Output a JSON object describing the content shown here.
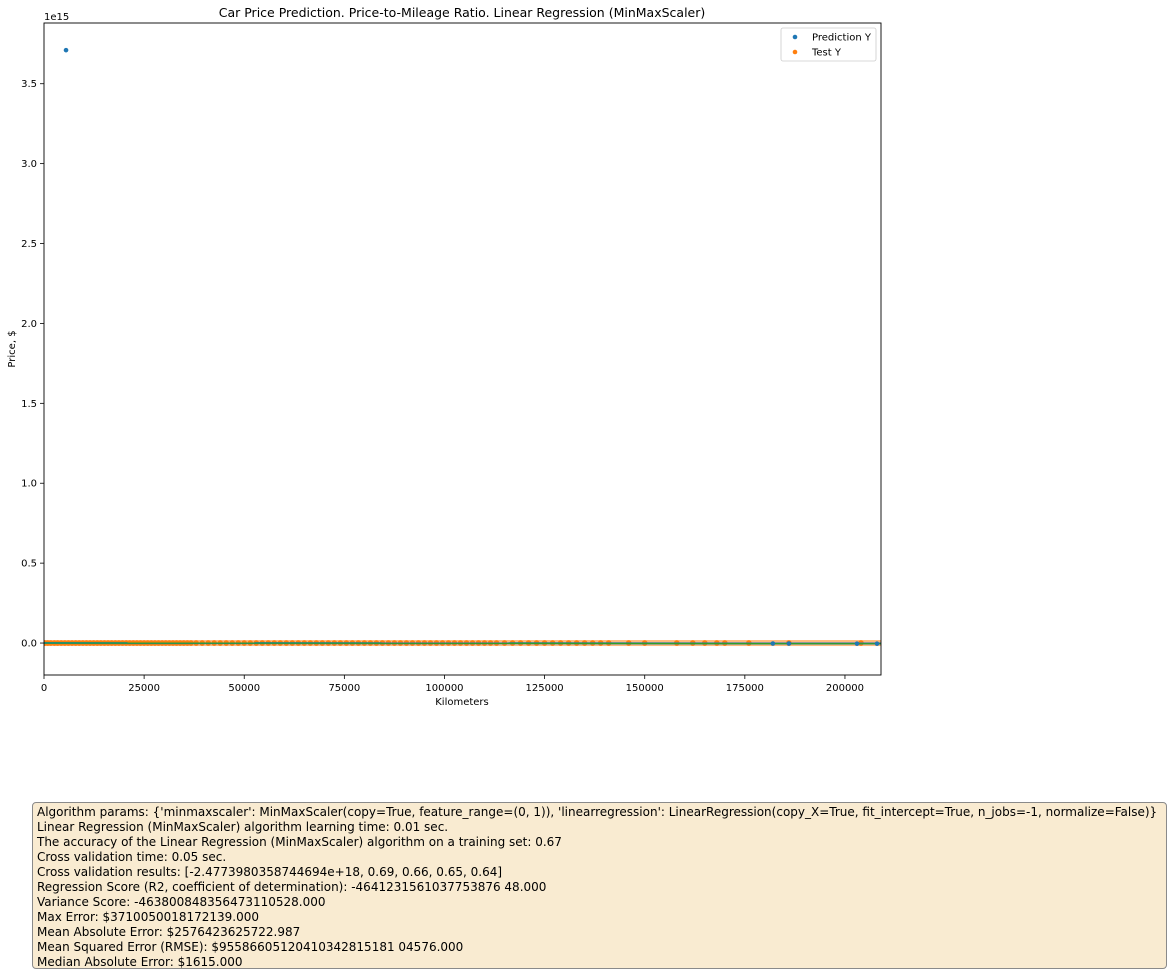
{
  "chart_data": {
    "type": "scatter",
    "title": "Car Price Prediction. Price-to-Mileage Ratio. Linear Regression (MinMaxScaler)",
    "xlabel": "Kilometers",
    "ylabel": "Price, $",
    "y_offset_label": "1e15",
    "xlim": [
      0,
      209000
    ],
    "ylim": [
      -0.2,
      3.88
    ],
    "y_scale_factor": 1000000000000000.0,
    "x_ticks": [
      0,
      25000,
      50000,
      75000,
      100000,
      125000,
      150000,
      175000,
      200000
    ],
    "x_tick_labels": [
      "0",
      "25000",
      "50000",
      "75000",
      "100000",
      "125000",
      "150000",
      "175000",
      "200000"
    ],
    "y_ticks": [
      0.0,
      0.5,
      1.0,
      1.5,
      2.0,
      2.5,
      3.0,
      3.5
    ],
    "y_tick_labels": [
      "0.0",
      "0.5",
      "1.0",
      "1.5",
      "2.0",
      "2.5",
      "3.0",
      "3.5"
    ],
    "legend_position": "top-right",
    "grid": false,
    "series": [
      {
        "name": "Prediction Y",
        "color": "#1f77b4",
        "points": [
          [
            5500,
            3.71
          ],
          [
            182000,
            -0.003
          ],
          [
            186000,
            -0.003
          ],
          [
            203000,
            -0.004
          ],
          [
            208000,
            -0.004
          ]
        ]
      },
      {
        "name": "Test Y",
        "color": "#ff7f0e",
        "x_values": [
          200,
          900,
          1700,
          2600,
          3400,
          4300,
          5200,
          6100,
          7000,
          7900,
          8800,
          9700,
          10600,
          11500,
          12400,
          13300,
          14200,
          15100,
          16000,
          16900,
          17800,
          18700,
          19600,
          20500,
          21400,
          22300,
          23200,
          24100,
          25000,
          25900,
          26800,
          27700,
          28600,
          29500,
          30400,
          31300,
          32200,
          33100,
          34000,
          34900,
          35800,
          36700,
          38000,
          39500,
          41000,
          42500,
          44000,
          45500,
          47000,
          48500,
          50000,
          51500,
          53000,
          54500,
          56000,
          57500,
          59000,
          60500,
          62000,
          63500,
          65000,
          66500,
          68000,
          69500,
          71000,
          72500,
          74000,
          75500,
          77000,
          78500,
          80000,
          81500,
          83000,
          84500,
          86000,
          87500,
          89000,
          90500,
          92000,
          93500,
          95000,
          96500,
          98000,
          99500,
          101000,
          102500,
          104000,
          105500,
          107000,
          108500,
          110000,
          111500,
          113000,
          115000,
          117000,
          119000,
          121000,
          123000,
          125000,
          127000,
          129000,
          131000,
          133000,
          135000,
          137000,
          139000,
          141000,
          146000,
          150000,
          158000,
          162000,
          165000,
          168000,
          170000,
          176000,
          186000,
          204000
        ],
        "y_value": 0.0
      }
    ],
    "trend_line": {
      "color": "#2ca02c",
      "from": [
        0,
        0.0
      ],
      "to": [
        209000,
        -0.004
      ]
    },
    "prediction_band": {
      "color": "#1f77b4",
      "from": [
        0,
        0.0
      ],
      "to": [
        209000,
        -0.003
      ]
    }
  },
  "results": {
    "lines": [
      "Algorithm params: {'minmaxscaler': MinMaxScaler(copy=True, feature_range=(0, 1)), 'linearregression': LinearRegression(copy_X=True, fit_intercept=True, n_jobs=-1, normalize=False)}",
      "Linear Regression (MinMaxScaler) algorithm learning time: 0.01 sec.",
      "The accuracy of the Linear Regression (MinMaxScaler) algorithm on a training set: 0.67",
      "Cross validation time: 0.05 sec.",
      "Cross validation results: [-2.4773980358744694e+18, 0.69, 0.66, 0.65, 0.64]",
      "Regression Score (R2, coefficient of determination): -4641231561037753876 48.000",
      "Variance Score: -463800848356473110528.000",
      "Max Error: $3710050018172139.000",
      "Mean Absolute Error: $2576423625722.987",
      "Mean Squared Error (RMSE): $95586605120410342815181 04576.000",
      "Median Absolute Error: $1615.000"
    ]
  }
}
